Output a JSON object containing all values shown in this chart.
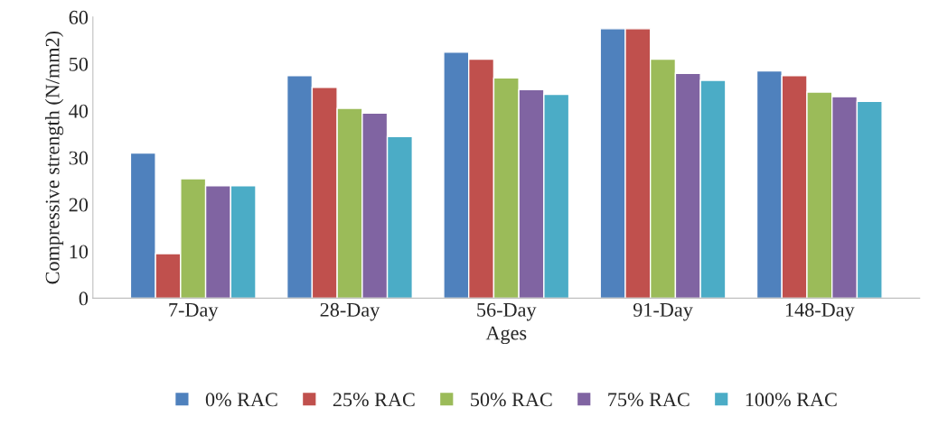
{
  "chart_data": {
    "type": "bar",
    "xlabel": "Ages",
    "ylabel": "Compressive strength (N/mm2)",
    "categories": [
      "7-Day",
      "28-Day",
      "56-Day",
      "91-Day",
      "148-Day"
    ],
    "series": [
      {
        "name": "0% RAC",
        "color": "#4f81bd",
        "values": [
          31,
          47.5,
          52.5,
          57.5,
          48.5
        ]
      },
      {
        "name": "25% RAC",
        "color": "#c0504d",
        "values": [
          9.5,
          45,
          51,
          57.5,
          47.5
        ]
      },
      {
        "name": "50% RAC",
        "color": "#9bbb59",
        "values": [
          25.5,
          40.5,
          47,
          51,
          44
        ]
      },
      {
        "name": "75% RAC",
        "color": "#8064a2",
        "values": [
          24,
          39.5,
          44.5,
          48,
          43
        ]
      },
      {
        "name": "100% RAC",
        "color": "#4bacc6",
        "values": [
          24,
          34.5,
          43.5,
          46.5,
          42
        ]
      }
    ],
    "ylim": [
      0,
      60
    ],
    "yticks": [
      0,
      10,
      20,
      30,
      40,
      50,
      60
    ],
    "grid": false,
    "legend": "bottom"
  }
}
